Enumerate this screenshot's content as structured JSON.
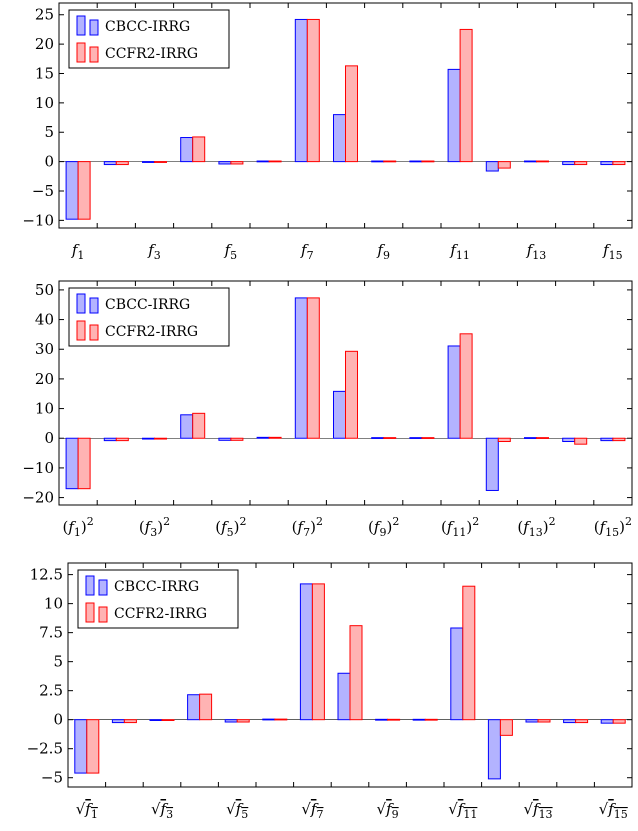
{
  "chart_data": [
    {
      "type": "bar",
      "categories": [
        "f1",
        "f2",
        "f3",
        "f4",
        "f5",
        "f6",
        "f7",
        "f8",
        "f9",
        "f10",
        "f11",
        "f12",
        "f13",
        "f14",
        "f15"
      ],
      "category_labels": [
        {
          "base": "f",
          "sub": "1"
        },
        {
          "base": "",
          "sub": ""
        },
        {
          "base": "f",
          "sub": "3"
        },
        {
          "base": "",
          "sub": ""
        },
        {
          "base": "f",
          "sub": "5"
        },
        {
          "base": "",
          "sub": ""
        },
        {
          "base": "f",
          "sub": "7"
        },
        {
          "base": "",
          "sub": ""
        },
        {
          "base": "f",
          "sub": "9"
        },
        {
          "base": "",
          "sub": ""
        },
        {
          "base": "f",
          "sub": "11"
        },
        {
          "base": "",
          "sub": ""
        },
        {
          "base": "f",
          "sub": "13"
        },
        {
          "base": "",
          "sub": ""
        },
        {
          "base": "f",
          "sub": "15"
        }
      ],
      "label_style": "plain",
      "series": [
        {
          "name": "CBCC-IRRG",
          "color": "#0000ff",
          "fill": "#b3b3ff",
          "values": [
            -9.8,
            -0.5,
            0,
            4.1,
            -0.4,
            0.1,
            24.2,
            8.0,
            0.1,
            0.1,
            15.7,
            -1.6,
            0.1,
            -0.5,
            -0.5
          ]
        },
        {
          "name": "CCFR2-IRRG",
          "color": "#ff0000",
          "fill": "#ffb3b3",
          "values": [
            -9.8,
            -0.5,
            0,
            4.2,
            -0.4,
            0.1,
            24.2,
            16.3,
            0.1,
            0.1,
            22.5,
            -1.1,
            0.1,
            -0.5,
            -0.5
          ]
        }
      ],
      "yticks": [
        -10,
        -5,
        0,
        5,
        10,
        15,
        20,
        25
      ],
      "ytick_labels": [
        "−10",
        "−5",
        "0",
        "5",
        "10",
        "15",
        "20",
        "25"
      ],
      "ylim": [
        -11.3,
        27.0
      ],
      "legend": "top-left",
      "grid": false
    },
    {
      "type": "bar",
      "categories": [
        "(f1)^2",
        "(f2)^2",
        "(f3)^2",
        "(f4)^2",
        "(f5)^2",
        "(f6)^2",
        "(f7)^2",
        "(f8)^2",
        "(f9)^2",
        "(f10)^2",
        "(f11)^2",
        "(f12)^2",
        "(f13)^2",
        "(f14)^2",
        "(f15)^2"
      ],
      "category_labels": [
        {
          "base": "f",
          "sub": "1"
        },
        {
          "base": "",
          "sub": ""
        },
        {
          "base": "f",
          "sub": "3"
        },
        {
          "base": "",
          "sub": ""
        },
        {
          "base": "f",
          "sub": "5"
        },
        {
          "base": "",
          "sub": ""
        },
        {
          "base": "f",
          "sub": "7"
        },
        {
          "base": "",
          "sub": ""
        },
        {
          "base": "f",
          "sub": "9"
        },
        {
          "base": "",
          "sub": ""
        },
        {
          "base": "f",
          "sub": "11"
        },
        {
          "base": "",
          "sub": ""
        },
        {
          "base": "f",
          "sub": "13"
        },
        {
          "base": "",
          "sub": ""
        },
        {
          "base": "f",
          "sub": "15"
        }
      ],
      "label_style": "squared",
      "series": [
        {
          "name": "CBCC-IRRG",
          "color": "#0000ff",
          "fill": "#b3b3ff",
          "values": [
            -17.0,
            -0.8,
            0,
            7.9,
            -0.7,
            0.3,
            47.3,
            15.8,
            0.2,
            0.2,
            31.1,
            -17.6,
            0.2,
            -1.1,
            -0.8
          ]
        },
        {
          "name": "CCFR2-IRRG",
          "color": "#ff0000",
          "fill": "#ffb3b3",
          "values": [
            -17.0,
            -0.8,
            0,
            8.4,
            -0.7,
            0.3,
            47.3,
            29.3,
            0.2,
            0.2,
            35.2,
            -1.1,
            0.2,
            -2.0,
            -0.8
          ]
        }
      ],
      "yticks": [
        -20,
        -10,
        0,
        10,
        20,
        30,
        40,
        50
      ],
      "ytick_labels": [
        "−20",
        "−10",
        "0",
        "10",
        "20",
        "30",
        "40",
        "50"
      ],
      "ylim": [
        -22.5,
        53.0
      ],
      "legend": "top-left",
      "grid": false
    },
    {
      "type": "bar",
      "categories": [
        "sqrt(f1)",
        "sqrt(f2)",
        "sqrt(f3)",
        "sqrt(f4)",
        "sqrt(f5)",
        "sqrt(f6)",
        "sqrt(f7)",
        "sqrt(f8)",
        "sqrt(f9)",
        "sqrt(f10)",
        "sqrt(f11)",
        "sqrt(f12)",
        "sqrt(f13)",
        "sqrt(f14)",
        "sqrt(f15)"
      ],
      "category_labels": [
        {
          "base": "f",
          "sub": "1"
        },
        {
          "base": "",
          "sub": ""
        },
        {
          "base": "f",
          "sub": "3"
        },
        {
          "base": "",
          "sub": ""
        },
        {
          "base": "f",
          "sub": "5"
        },
        {
          "base": "",
          "sub": ""
        },
        {
          "base": "f",
          "sub": "7"
        },
        {
          "base": "",
          "sub": ""
        },
        {
          "base": "f",
          "sub": "9"
        },
        {
          "base": "",
          "sub": ""
        },
        {
          "base": "f",
          "sub": "11"
        },
        {
          "base": "",
          "sub": ""
        },
        {
          "base": "f",
          "sub": "13"
        },
        {
          "base": "",
          "sub": ""
        },
        {
          "base": "f",
          "sub": "15"
        }
      ],
      "label_style": "sqrt",
      "series": [
        {
          "name": "CBCC-IRRG",
          "color": "#0000ff",
          "fill": "#b3b3ff",
          "values": [
            -4.6,
            -0.25,
            0,
            2.15,
            -0.2,
            0.05,
            11.7,
            4.0,
            0.03,
            0.03,
            7.9,
            -5.1,
            -0.2,
            -0.25,
            -0.3
          ]
        },
        {
          "name": "CCFR2-IRRG",
          "color": "#ff0000",
          "fill": "#ffb3b3",
          "values": [
            -4.6,
            -0.25,
            0,
            2.2,
            -0.2,
            0.05,
            11.7,
            8.1,
            0.03,
            0.03,
            11.5,
            -1.35,
            -0.2,
            -0.25,
            -0.3
          ]
        }
      ],
      "yticks": [
        -5,
        -2.5,
        0,
        2.5,
        5,
        7.5,
        10,
        12.5
      ],
      "ytick_labels": [
        "−5",
        "−2.5",
        "0",
        "2.5",
        "5",
        "7.5",
        "10",
        "12.5"
      ],
      "ylim": [
        -5.8,
        13.5
      ],
      "legend": "top-left",
      "grid": false
    }
  ]
}
